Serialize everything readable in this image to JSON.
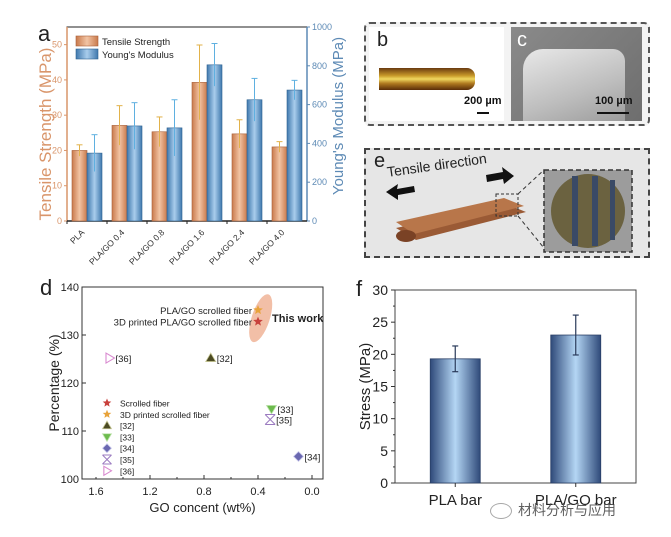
{
  "chart_data": [
    {
      "panel": "a",
      "type": "bar",
      "categories": [
        "PLA",
        "PLA/GO 0.4",
        "PLA/GO 0.8",
        "PLA/GO 1.6",
        "PLA/GO 2.4",
        "PLA/GO 4.0"
      ],
      "series": [
        {
          "name": "Tensile Strength",
          "axis": "left",
          "values": [
            20.0,
            27.1,
            25.3,
            39.3,
            24.7,
            21.0
          ],
          "errors": [
            1.6,
            5.6,
            4.2,
            10.6,
            4.0,
            1.5
          ],
          "color": "#d9956a"
        },
        {
          "name": "Young's Modulus",
          "axis": "right",
          "values": [
            350,
            490,
            480,
            805,
            625,
            675
          ],
          "errors": [
            95,
            120,
            145,
            110,
            110,
            50
          ],
          "color": "#5d93c4"
        }
      ],
      "ylabel": "Tensile Strength (MPa)",
      "y2label": "Young's Modulus (MPa)",
      "ylim": [
        0,
        55
      ],
      "y2lim": [
        0,
        1000
      ],
      "yticks": [
        "0",
        "10",
        "20",
        "30",
        "40",
        "50"
      ],
      "y2ticks": [
        "0",
        "200",
        "400",
        "600",
        "800",
        "1000"
      ],
      "legend": "top-left",
      "ylabel_color": "#d9956a",
      "y2label_color": "#5d8ab5"
    },
    {
      "panel": "d",
      "type": "scatter",
      "xlabel": "GO concent (wt%)",
      "ylabel": "Percentage (%)",
      "xlim": [
        1.7,
        -0.08
      ],
      "ylim": [
        100,
        140
      ],
      "xticks": [
        "1.6",
        "1.2",
        "0.8",
        "0.4",
        "0.0"
      ],
      "yticks": [
        "100",
        "110",
        "120",
        "130",
        "140"
      ],
      "points": [
        {
          "name": "PLA/GO scrolled fiber",
          "x": 0.4,
          "y": 135.2,
          "marker": "star",
          "color": "#e8a33a",
          "label": "PLA/GO scrolled fiber",
          "label_side": "left"
        },
        {
          "name": "3D printed PLA/GO scrolled fiber",
          "x": 0.4,
          "y": 132.8,
          "marker": "star",
          "color": "#c8413c",
          "label": "3D printed PLA/GO scrolled fiber",
          "label_side": "left"
        },
        {
          "name": "[32]",
          "x": 0.75,
          "y": 125.2,
          "marker": "triangle-up",
          "color": "#4b4a22",
          "label": "[32]",
          "label_side": "right"
        },
        {
          "name": "[33]",
          "x": 0.3,
          "y": 114.6,
          "marker": "triangle-down",
          "color": "#6dbb4e",
          "label": "[33]",
          "label_side": "right"
        },
        {
          "name": "[34]",
          "x": 0.1,
          "y": 104.7,
          "marker": "diamond",
          "color": "#6a68b0",
          "label": "[34]",
          "label_side": "right"
        },
        {
          "name": "[35]",
          "x": 0.31,
          "y": 112.4,
          "marker": "cross",
          "color": "#9b7bc0",
          "label": "[35]",
          "label_side": "right"
        },
        {
          "name": "[36]",
          "x": 1.5,
          "y": 125.2,
          "marker": "triangle-right",
          "color": "#d98ad0",
          "label": "[36]",
          "label_side": "right"
        }
      ],
      "annotation": "This work",
      "highlight_color": "#eea98a",
      "legend": "bottom-left",
      "legend_entries": [
        {
          "label": "Scrolled fiber",
          "marker": "star",
          "color": "#c8413c"
        },
        {
          "label": "3D printed scrolled fiber",
          "marker": "star",
          "color": "#e8a33a"
        },
        {
          "label": "[32]",
          "marker": "triangle-up",
          "color": "#4b4a22"
        },
        {
          "label": "[33]",
          "marker": "triangle-down",
          "color": "#6dbb4e"
        },
        {
          "label": "[34]",
          "marker": "diamond",
          "color": "#6a68b0"
        },
        {
          "label": "[35]",
          "marker": "cross",
          "color": "#9b7bc0"
        },
        {
          "label": "[36]",
          "marker": "triangle-right",
          "color": "#d98ad0"
        }
      ]
    },
    {
      "panel": "f",
      "type": "bar",
      "categories": [
        "PLA bar",
        "PLA/GO bar"
      ],
      "values": [
        19.3,
        23.0
      ],
      "errors": [
        2.0,
        3.1
      ],
      "ylabel": "Stress (MPa)",
      "ylim": [
        0,
        30
      ],
      "yticks": [
        "0",
        "5",
        "10",
        "15",
        "20",
        "25",
        "30"
      ],
      "color": "#7fa8d8"
    }
  ],
  "panels": {
    "a": "a",
    "b": "b",
    "c": "c",
    "d": "d",
    "e": "e",
    "f": "f"
  },
  "images": {
    "b_scale": "200 µm",
    "c_scale": "100 µm",
    "e_label": "Tensile direction"
  },
  "watermark": "材料分析与应用"
}
